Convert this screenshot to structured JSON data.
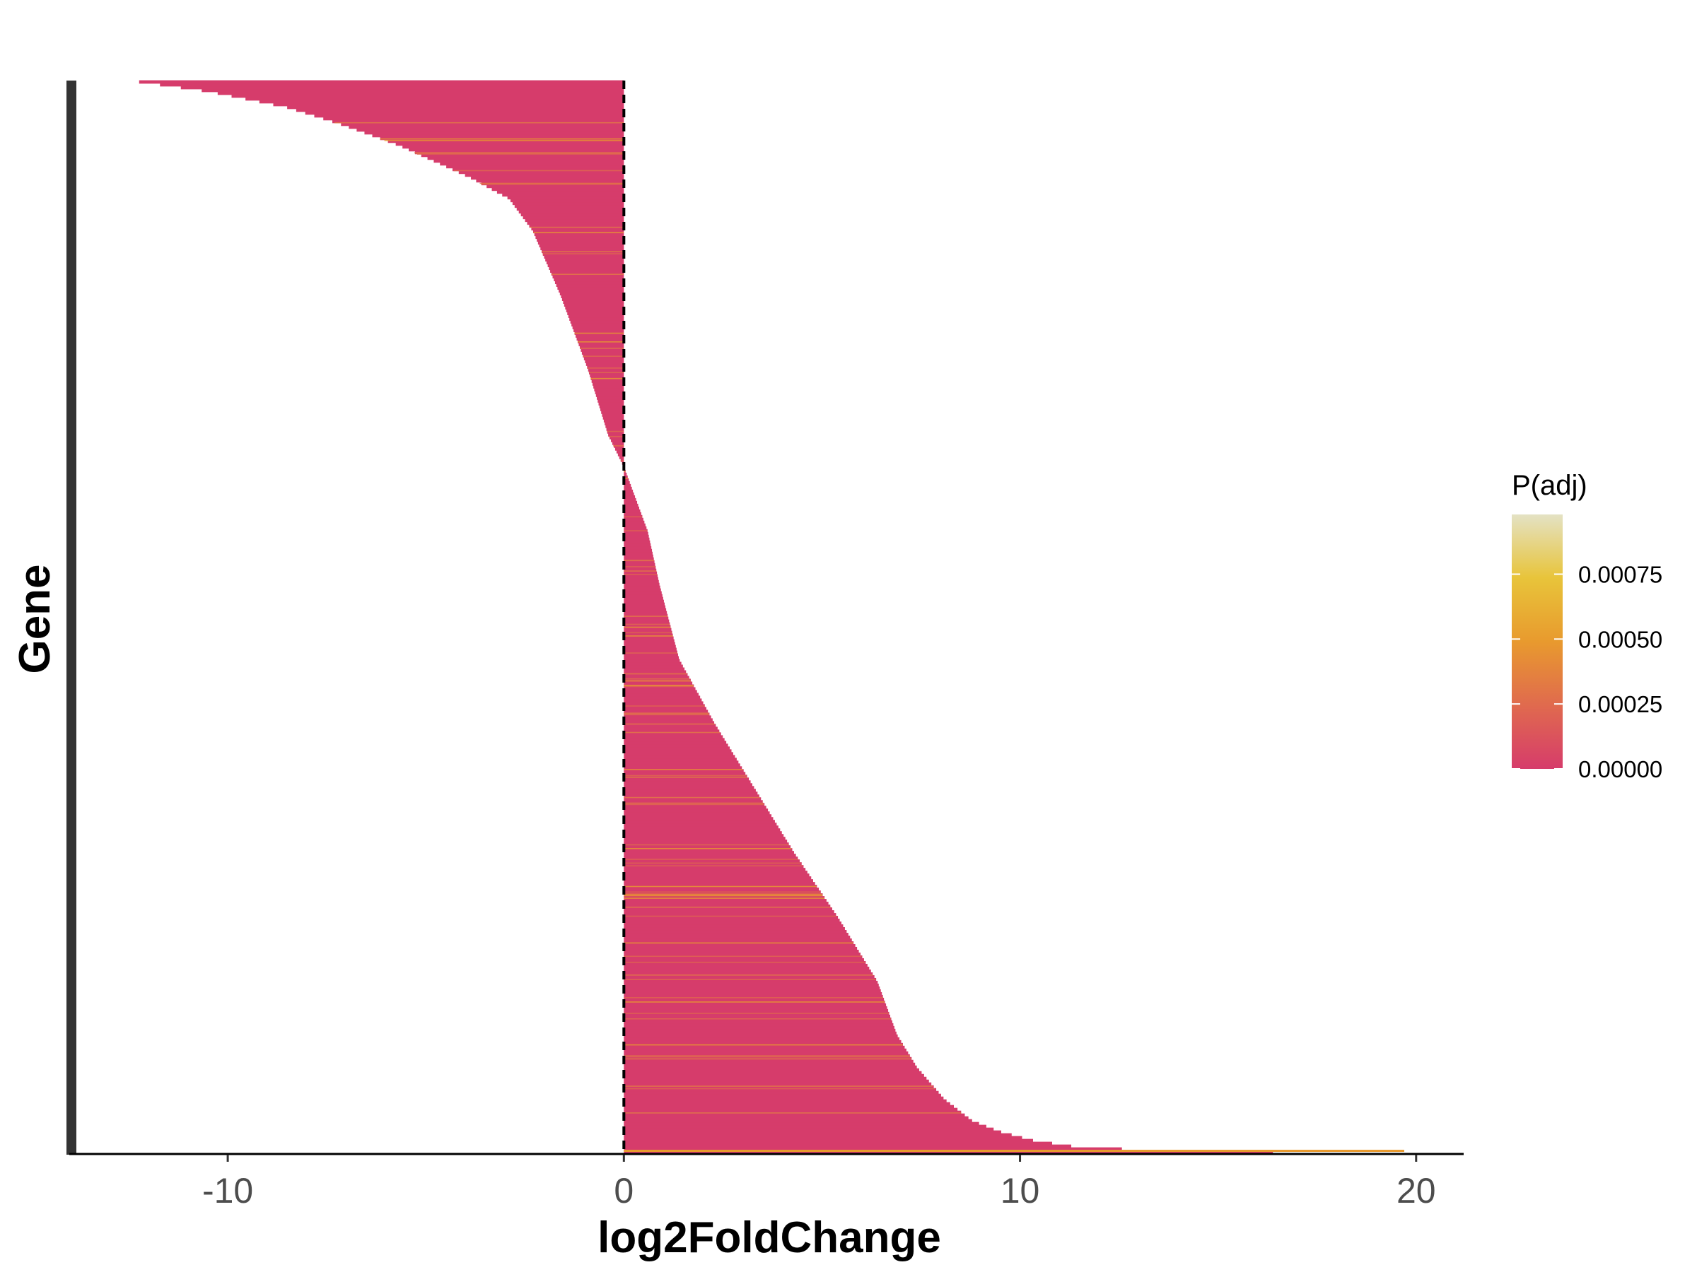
{
  "chart_data": {
    "type": "bar",
    "orientation": "horizontal",
    "sorted": "descending by log2FoldChange from bottom to top",
    "xlabel": "log2FoldChange",
    "ylabel": "Gene",
    "xlim": [
      -14,
      21.2
    ],
    "x_ticks": [
      -10,
      0,
      10,
      20
    ],
    "reference_line": {
      "x": 0,
      "style": "dashed"
    },
    "n_genes_approx": 2000,
    "distribution_profile": [
      {
        "frac": 0.0,
        "log2FoldChange": 19.7
      },
      {
        "frac": 0.0025,
        "log2FoldChange": 13.4
      },
      {
        "frac": 0.006,
        "log2FoldChange": 11.4
      },
      {
        "frac": 0.012,
        "log2FoldChange": 10.3
      },
      {
        "frac": 0.02,
        "log2FoldChange": 9.5
      },
      {
        "frac": 0.03,
        "log2FoldChange": 8.8
      },
      {
        "frac": 0.05,
        "log2FoldChange": 8.1
      },
      {
        "frac": 0.08,
        "log2FoldChange": 7.4
      },
      {
        "frac": 0.11,
        "log2FoldChange": 6.9
      },
      {
        "frac": 0.16,
        "log2FoldChange": 6.4
      },
      {
        "frac": 0.22,
        "log2FoldChange": 5.4
      },
      {
        "frac": 0.28,
        "log2FoldChange": 4.3
      },
      {
        "frac": 0.34,
        "log2FoldChange": 3.3
      },
      {
        "frac": 0.4,
        "log2FoldChange": 2.3
      },
      {
        "frac": 0.46,
        "log2FoldChange": 1.4
      },
      {
        "frac": 0.53,
        "log2FoldChange": 0.9
      },
      {
        "frac": 0.58,
        "log2FoldChange": 0.6
      },
      {
        "frac": 0.64,
        "log2FoldChange": 0.0
      },
      {
        "frac": 0.67,
        "log2FoldChange": -0.4
      },
      {
        "frac": 0.73,
        "log2FoldChange": -0.9
      },
      {
        "frac": 0.8,
        "log2FoldChange": -1.6
      },
      {
        "frac": 0.86,
        "log2FoldChange": -2.3
      },
      {
        "frac": 0.89,
        "log2FoldChange": -2.9
      },
      {
        "frac": 0.91,
        "log2FoldChange": -3.9
      },
      {
        "frac": 0.925,
        "log2FoldChange": -4.8
      },
      {
        "frac": 0.94,
        "log2FoldChange": -5.7
      },
      {
        "frac": 0.96,
        "log2FoldChange": -7.2
      },
      {
        "frac": 0.975,
        "log2FoldChange": -8.5
      },
      {
        "frac": 0.99,
        "log2FoldChange": -10.5
      },
      {
        "frac": 1.0,
        "log2FoldChange": -12.5
      }
    ],
    "color_scale": {
      "title": "P(adj)",
      "variable": "padj",
      "stops": [
        {
          "value": 0.0,
          "color": "#d63c6b"
        },
        {
          "value": 0.00025,
          "color": "#e06a4e"
        },
        {
          "value": 0.0005,
          "color": "#e89a2e"
        },
        {
          "value": 0.00075,
          "color": "#e8c43a"
        },
        {
          "value": 0.001,
          "color": "#e4e2c4"
        }
      ],
      "breaks": [
        0.00075,
        0.0005,
        0.00025,
        0.0
      ],
      "break_labels": [
        "0.00075",
        "0.00050",
        "0.00025",
        "0.00000"
      ],
      "range": [
        0,
        0.00098
      ],
      "dominant_color": "#d63c6b"
    },
    "grid": false,
    "legend_position": "right"
  }
}
